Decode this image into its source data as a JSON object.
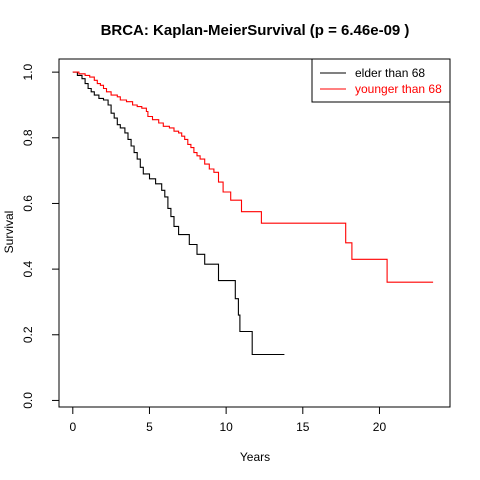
{
  "chart_data": {
    "type": "line",
    "title": "BRCA: Kaplan-MeierSurvival (p = 6.46e-09 )",
    "xlabel": "Years",
    "ylabel": "Survival",
    "xlim": [
      -0.9,
      24.6
    ],
    "ylim": [
      -0.02,
      1.04
    ],
    "xticks": [
      0,
      5,
      10,
      15,
      20
    ],
    "yticks": [
      0.0,
      0.2,
      0.4,
      0.6,
      0.8,
      1.0
    ],
    "xtick_labels": [
      "0",
      "5",
      "10",
      "15",
      "20"
    ],
    "ytick_labels": [
      "0.0",
      "0.2",
      "0.4",
      "0.6",
      "0.8",
      "1.0"
    ],
    "grid": false,
    "legend_position": "top-right",
    "step": true,
    "series": [
      {
        "name": "elder than 68",
        "color": "#000000",
        "points": [
          [
            0,
            1.0
          ],
          [
            0.3,
            0.99
          ],
          [
            0.6,
            0.98
          ],
          [
            0.8,
            0.965
          ],
          [
            1.0,
            0.95
          ],
          [
            1.2,
            0.94
          ],
          [
            1.4,
            0.93
          ],
          [
            1.7,
            0.92
          ],
          [
            2.0,
            0.915
          ],
          [
            2.3,
            0.9
          ],
          [
            2.5,
            0.875
          ],
          [
            2.7,
            0.86
          ],
          [
            2.9,
            0.84
          ],
          [
            3.1,
            0.83
          ],
          [
            3.4,
            0.815
          ],
          [
            3.6,
            0.795
          ],
          [
            3.8,
            0.775
          ],
          [
            4.0,
            0.755
          ],
          [
            4.2,
            0.735
          ],
          [
            4.4,
            0.71
          ],
          [
            4.6,
            0.69
          ],
          [
            5.0,
            0.675
          ],
          [
            5.4,
            0.66
          ],
          [
            5.8,
            0.64
          ],
          [
            6.0,
            0.62
          ],
          [
            6.2,
            0.585
          ],
          [
            6.4,
            0.56
          ],
          [
            6.6,
            0.53
          ],
          [
            6.9,
            0.505
          ],
          [
            7.6,
            0.475
          ],
          [
            8.1,
            0.445
          ],
          [
            8.6,
            0.415
          ],
          [
            9.5,
            0.365
          ],
          [
            10.6,
            0.31
          ],
          [
            10.8,
            0.26
          ],
          [
            10.9,
            0.21
          ],
          [
            11.7,
            0.14
          ],
          [
            13.8,
            0.14
          ]
        ]
      },
      {
        "name": "younger than 68",
        "color": "#ff0000",
        "points": [
          [
            0,
            1.0
          ],
          [
            0.4,
            0.995
          ],
          [
            0.8,
            0.99
          ],
          [
            1.1,
            0.985
          ],
          [
            1.4,
            0.975
          ],
          [
            1.6,
            0.965
          ],
          [
            1.8,
            0.96
          ],
          [
            2.0,
            0.95
          ],
          [
            2.2,
            0.94
          ],
          [
            2.5,
            0.93
          ],
          [
            2.9,
            0.925
          ],
          [
            3.1,
            0.915
          ],
          [
            3.5,
            0.91
          ],
          [
            3.9,
            0.9
          ],
          [
            4.2,
            0.895
          ],
          [
            4.5,
            0.89
          ],
          [
            4.8,
            0.88
          ],
          [
            4.9,
            0.865
          ],
          [
            5.2,
            0.855
          ],
          [
            5.6,
            0.845
          ],
          [
            5.9,
            0.835
          ],
          [
            6.3,
            0.83
          ],
          [
            6.6,
            0.82
          ],
          [
            6.9,
            0.815
          ],
          [
            7.1,
            0.805
          ],
          [
            7.3,
            0.795
          ],
          [
            7.5,
            0.78
          ],
          [
            7.7,
            0.77
          ],
          [
            7.9,
            0.755
          ],
          [
            8.1,
            0.745
          ],
          [
            8.3,
            0.735
          ],
          [
            8.6,
            0.72
          ],
          [
            8.9,
            0.705
          ],
          [
            9.2,
            0.695
          ],
          [
            9.5,
            0.665
          ],
          [
            9.8,
            0.635
          ],
          [
            10.3,
            0.61
          ],
          [
            11.0,
            0.575
          ],
          [
            12.3,
            0.54
          ],
          [
            17.8,
            0.48
          ],
          [
            18.2,
            0.43
          ],
          [
            20.5,
            0.36
          ],
          [
            23.5,
            0.36
          ]
        ]
      }
    ]
  }
}
